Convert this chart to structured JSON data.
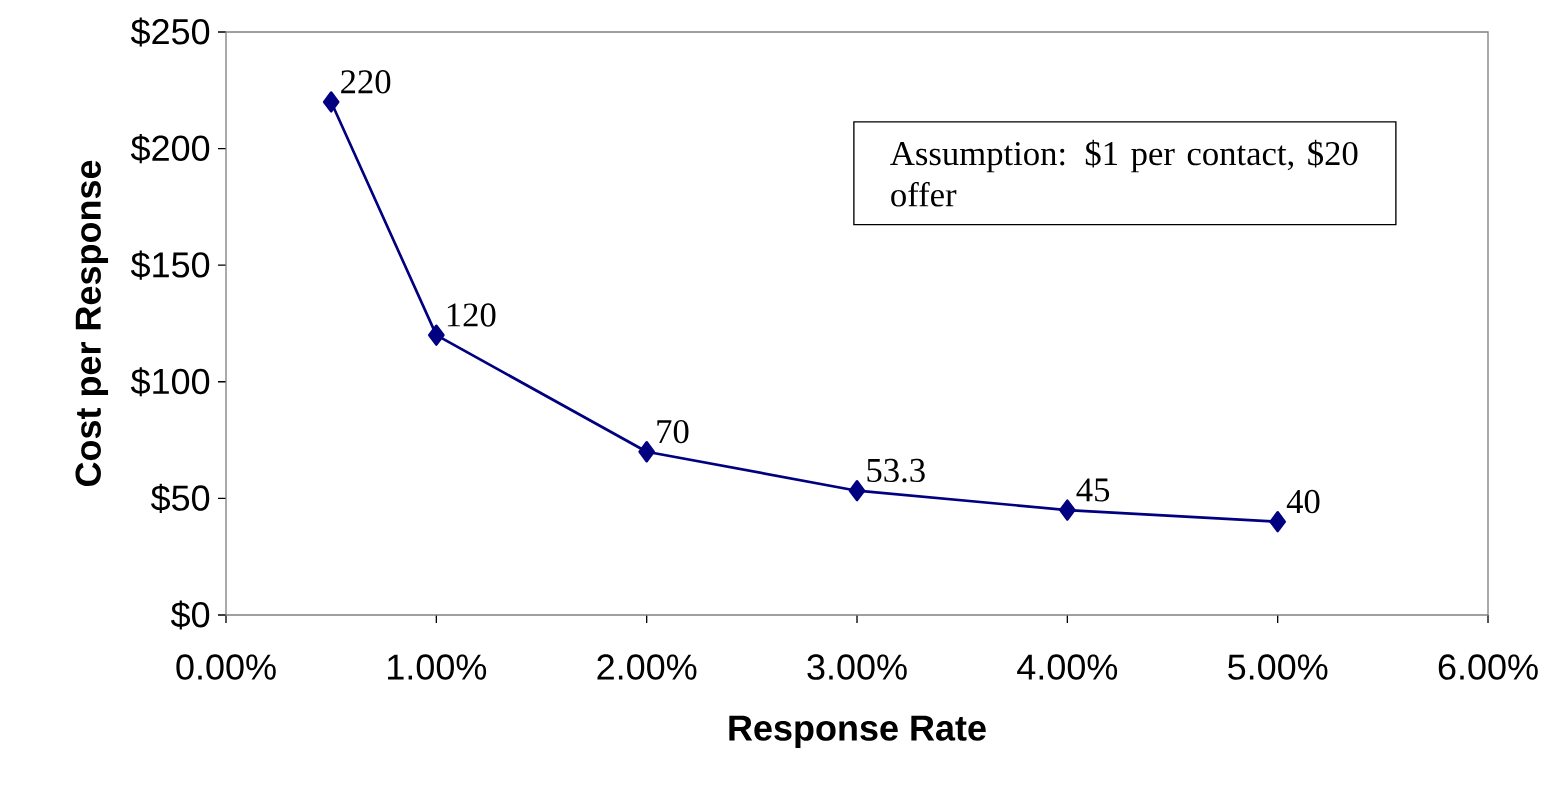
{
  "chart_data": {
    "type": "line",
    "xlabel": "Response Rate",
    "ylabel": "Cost per Response",
    "x": [
      0.5,
      1,
      2,
      3,
      4,
      5
    ],
    "series": [
      {
        "color": "#000080",
        "values": [
          220,
          120,
          70,
          53.3,
          45,
          40
        ]
      }
    ],
    "xlim": [
      0,
      6
    ],
    "xticks": [
      {
        "value": 0,
        "label": "0.00%"
      },
      {
        "value": 1,
        "label": "1.00%"
      },
      {
        "value": 2,
        "label": "2.00%"
      },
      {
        "value": 3,
        "label": "3.00%"
      },
      {
        "value": 4,
        "label": "4.00%"
      },
      {
        "value": 5,
        "label": "5.00%"
      },
      {
        "value": 6,
        "label": "6.00%"
      }
    ],
    "ylim": [
      0,
      250
    ],
    "yticks": [
      {
        "value": 0,
        "label": "$0"
      },
      {
        "value": 50,
        "label": "$50"
      },
      {
        "value": 100,
        "label": "$100"
      },
      {
        "value": 150,
        "label": "$150"
      },
      {
        "value": 200,
        "label": "$200"
      },
      {
        "value": 250,
        "label": "$250"
      }
    ],
    "marker": "diamond",
    "line_style": "solid",
    "data_labels": true,
    "annotations": [
      "Assumption: $1 per contact, $20 offer"
    ]
  }
}
